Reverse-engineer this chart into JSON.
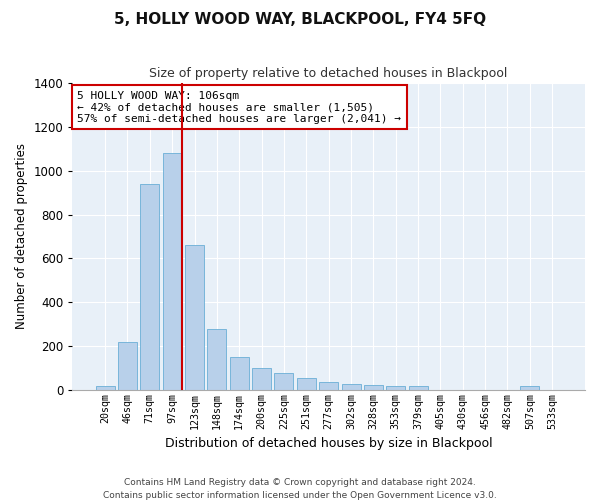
{
  "title": "5, HOLLY WOOD WAY, BLACKPOOL, FY4 5FQ",
  "subtitle": "Size of property relative to detached houses in Blackpool",
  "xlabel": "Distribution of detached houses by size in Blackpool",
  "ylabel": "Number of detached properties",
  "footer_line1": "Contains HM Land Registry data © Crown copyright and database right 2024.",
  "footer_line2": "Contains public sector information licensed under the Open Government Licence v3.0.",
  "annotation_line1": "5 HOLLY WOOD WAY: 106sqm",
  "annotation_line2": "← 42% of detached houses are smaller (1,505)",
  "annotation_line3": "57% of semi-detached houses are larger (2,041) →",
  "bar_color": "#b8d0ea",
  "bar_edge_color": "#6aaed6",
  "vline_color": "#cc0000",
  "background_color": "#e8f0f8",
  "grid_color": "#ffffff",
  "categories": [
    "20sqm",
    "46sqm",
    "71sqm",
    "97sqm",
    "123sqm",
    "148sqm",
    "174sqm",
    "200sqm",
    "225sqm",
    "251sqm",
    "277sqm",
    "302sqm",
    "328sqm",
    "353sqm",
    "379sqm",
    "405sqm",
    "430sqm",
    "456sqm",
    "482sqm",
    "507sqm",
    "533sqm"
  ],
  "values": [
    18,
    220,
    940,
    1080,
    660,
    280,
    150,
    100,
    75,
    55,
    35,
    25,
    22,
    20,
    18,
    0,
    0,
    0,
    0,
    18,
    0
  ],
  "ylim": [
    0,
    1400
  ],
  "yticks": [
    0,
    200,
    400,
    600,
    800,
    1000,
    1200,
    1400
  ],
  "vline_position": 3.42,
  "figwidth": 6.0,
  "figheight": 5.0,
  "dpi": 100
}
